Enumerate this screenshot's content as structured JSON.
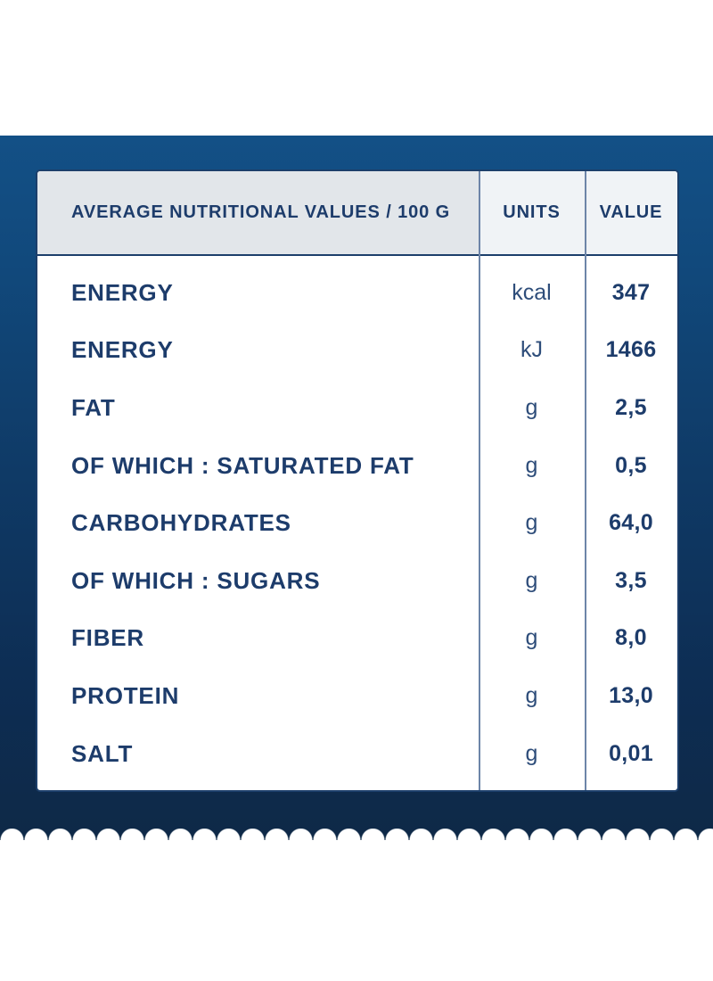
{
  "table": {
    "header": {
      "title": "AVERAGE NUTRITIONAL VALUES / 100 G",
      "units_label": "UNITS",
      "value_label": "VALUE"
    },
    "rows": [
      {
        "label": "ENERGY",
        "units": "kcal",
        "value": "347"
      },
      {
        "label": "ENERGY",
        "units": "kJ",
        "value": "1466"
      },
      {
        "label": "FAT",
        "units": "g",
        "value": "2,5"
      },
      {
        "label": "OF WHICH : SATURATED FAT",
        "units": "g",
        "value": "0,5"
      },
      {
        "label": "CARBOHYDRATES",
        "units": "g",
        "value": "64,0"
      },
      {
        "label": "OF WHICH : SUGARS",
        "units": "g",
        "value": "3,5"
      },
      {
        "label": "FIBER",
        "units": "g",
        "value": "8,0"
      },
      {
        "label": "PROTEIN",
        "units": "g",
        "value": "13,0"
      },
      {
        "label": "SALT",
        "units": "g",
        "value": "0,01"
      }
    ]
  },
  "colors": {
    "panel_blue_top": "#135086",
    "panel_blue_bottom": "#0e2947",
    "navy_text": "#1d3c6b",
    "header_cell_bg": "#e2e6ea",
    "header_subcell_bg": "#f0f3f6",
    "divider": "#6d85a8",
    "card_border": "#1c3f6b",
    "page_bg": "#ffffff"
  }
}
